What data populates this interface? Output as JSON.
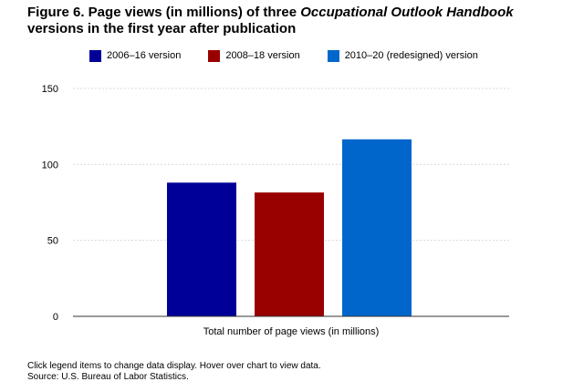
{
  "title": {
    "part1": "Figure 6. Page views (in millions) of three ",
    "italic": "Occupational Outlook Handbook",
    "part2": " versions in the first year after publication"
  },
  "footer": {
    "instructions": "Click legend items to change data display. Hover over chart to view data.",
    "source": "Source: U.S. Bureau of Labor Statistics."
  },
  "chart_data": {
    "type": "bar",
    "categories": [
      "Total number of page views (in millions)"
    ],
    "series": [
      {
        "name": "2006–16 version",
        "values": [
          88
        ],
        "color": "#000099"
      },
      {
        "name": "2008–18 version",
        "values": [
          81.5
        ],
        "color": "#990000"
      },
      {
        "name": "2010–20 (redesigned) version",
        "values": [
          116.5
        ],
        "color": "#0066cc"
      }
    ],
    "xlabel": "Total number of page views (in millions)",
    "ylabel": "",
    "ylim": [
      0,
      150
    ],
    "yticks": [
      "0",
      "50",
      "100",
      "150"
    ],
    "grid": true,
    "legend": "top"
  }
}
